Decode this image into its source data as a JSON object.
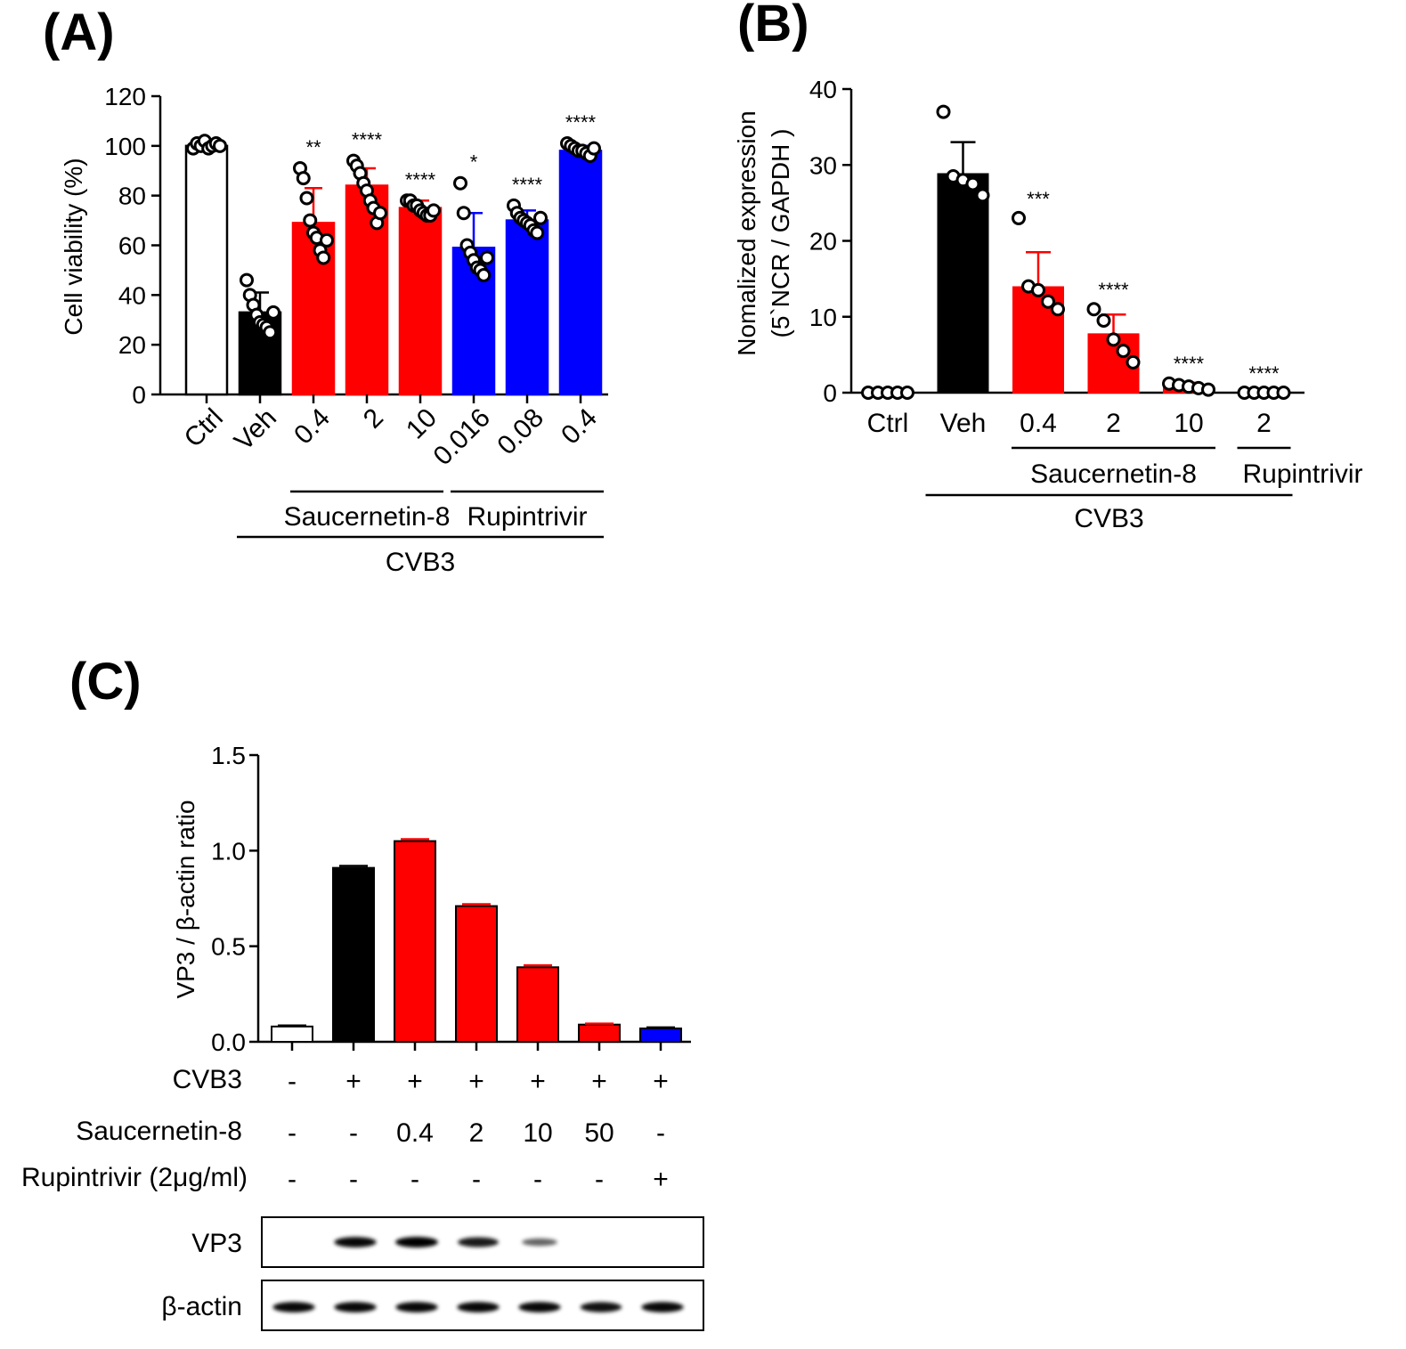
{
  "colors": {
    "ctrl": "#ffffff",
    "veh": "#000000",
    "saucernetin": "#ff0000",
    "rupintrivir": "#0000ff"
  },
  "chart_data": [
    {
      "panel": "(A)",
      "type": "bar",
      "ylabel": "Cell viability (%)",
      "ylim": [
        0,
        120
      ],
      "yticks": [
        "0",
        "20",
        "40",
        "60",
        "80",
        "100",
        "120"
      ],
      "categories": [
        "Ctrl",
        "Veh",
        "0.4",
        "2",
        "10",
        "0.016",
        "0.08",
        "0.4"
      ],
      "values": [
        100,
        33,
        69,
        84,
        75,
        59,
        70,
        98
      ],
      "errors": [
        1,
        8,
        14,
        7,
        3,
        14,
        4,
        2
      ],
      "fill": [
        "ctrl",
        "veh",
        "saucernetin",
        "saucernetin",
        "saucernetin",
        "rupintrivir",
        "rupintrivir",
        "rupintrivir"
      ],
      "significance": [
        "",
        "",
        "**",
        "****",
        "****",
        "*",
        "****",
        "****"
      ],
      "points": [
        [
          99,
          101,
          100,
          102,
          99,
          100,
          101,
          100
        ],
        [
          46,
          40,
          36,
          32,
          29,
          28,
          27,
          25,
          33
        ],
        [
          91,
          87,
          79,
          70,
          65,
          63,
          58,
          55,
          62
        ],
        [
          94,
          92,
          89,
          85,
          82,
          78,
          75,
          69,
          73
        ],
        [
          78,
          78,
          76,
          76,
          74,
          73,
          72,
          72,
          74
        ],
        [
          85,
          73,
          60,
          57,
          54,
          51,
          50,
          48,
          55
        ],
        [
          76,
          73,
          71,
          70,
          69,
          68,
          66,
          65,
          71
        ],
        [
          101,
          100,
          99,
          98,
          98,
          97,
          96,
          99
        ]
      ],
      "groups": [
        {
          "label": "Saucernetin-8",
          "from": 2,
          "to": 4,
          "level": 1
        },
        {
          "label": "Rupintrivir",
          "from": 5,
          "to": 7,
          "level": 1
        },
        {
          "label": "CVB3",
          "from": 1,
          "to": 7,
          "level": 2
        }
      ]
    },
    {
      "panel": "(B)",
      "type": "bar",
      "ylabel": [
        "Nomalized expression",
        "(5`NCR / GAPDH )"
      ],
      "ylim": [
        0,
        40
      ],
      "yticks": [
        "0",
        "10",
        "20",
        "30",
        "40"
      ],
      "categories": [
        "Ctrl",
        "Veh",
        "0.4",
        "2",
        "10",
        "2"
      ],
      "values": [
        0,
        28.8,
        13.9,
        7.7,
        0.8,
        0
      ],
      "errors": [
        0,
        4.2,
        4.6,
        2.6,
        0.5,
        0
      ],
      "fill": [
        "ctrl",
        "veh",
        "saucernetin",
        "saucernetin",
        "saucernetin",
        "rupintrivir"
      ],
      "significance": [
        "",
        "",
        "***",
        "****",
        "****",
        "****"
      ],
      "points": [
        [
          0,
          0,
          0,
          0,
          0
        ],
        [
          37,
          28.5,
          28,
          27.5,
          26
        ],
        [
          23,
          14,
          13.5,
          12,
          11
        ],
        [
          11,
          9.5,
          7,
          5.5,
          4
        ],
        [
          1.2,
          1.0,
          0.8,
          0.6,
          0.4
        ],
        [
          0,
          0,
          0,
          0,
          0
        ]
      ],
      "groups": [
        {
          "label": "Saucernetin-8",
          "from": 2,
          "to": 4,
          "level": 1
        },
        {
          "label": "Rupintrivir",
          "from": 5,
          "to": 5,
          "level": 1
        },
        {
          "label": "CVB3",
          "from": 1,
          "to": 5,
          "level": 2
        }
      ]
    },
    {
      "panel": "(C)",
      "type": "bar",
      "ylabel": "VP3 / β-actin ratio",
      "ylim": [
        0,
        1.5
      ],
      "yticks": [
        "0.0",
        "0.5",
        "1.0",
        "1.5"
      ],
      "values": [
        0.08,
        0.91,
        1.05,
        0.71,
        0.39,
        0.09,
        0.07
      ],
      "errors": [
        0.005,
        0.01,
        0.01,
        0.01,
        0.01,
        0.005,
        0.005
      ],
      "fill": [
        "ctrl",
        "veh",
        "saucernetin",
        "saucernetin",
        "saucernetin",
        "saucernetin",
        "rupintrivir"
      ],
      "conditions": [
        {
          "label": "CVB3",
          "values": [
            "-",
            "+",
            "+",
            "+",
            "+",
            "+",
            "+"
          ]
        },
        {
          "label": "Saucernetin-8",
          "values": [
            "-",
            "-",
            "0.4",
            "2",
            "10",
            "50",
            "-"
          ]
        },
        {
          "label": "Rupintrivir (2μg/ml)",
          "values": [
            "-",
            "-",
            "-",
            "-",
            "-",
            "-",
            "+"
          ]
        }
      ],
      "blots": [
        {
          "label": "VP3",
          "intensity": [
            0,
            0.95,
            1.0,
            0.85,
            0.4,
            0,
            0
          ]
        },
        {
          "label": "β-actin",
          "intensity": [
            0.95,
            0.95,
            0.95,
            0.95,
            0.95,
            0.9,
            0.95
          ]
        }
      ]
    }
  ]
}
